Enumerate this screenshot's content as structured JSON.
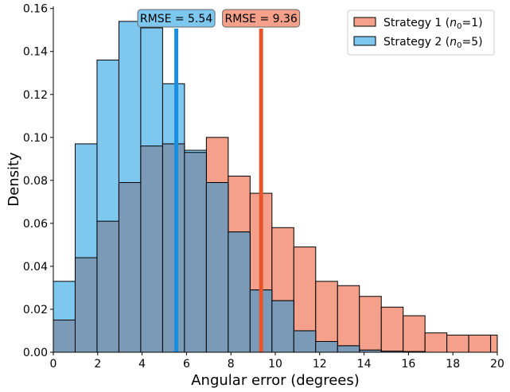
{
  "chart_data": {
    "type": "bar",
    "xlabel": "Angular error (degrees)",
    "ylabel": "Density",
    "xlim": [
      0,
      20
    ],
    "ylim": [
      0,
      0.161
    ],
    "xticks": [
      0,
      2,
      4,
      6,
      8,
      10,
      12,
      14,
      16,
      18,
      20
    ],
    "xtick_labels": [
      "0",
      "2",
      "4",
      "6",
      "8",
      "10",
      "12",
      "14",
      "16",
      "18",
      "20"
    ],
    "yticks": [
      0,
      0.02,
      0.04,
      0.06,
      0.08,
      0.1,
      0.12,
      0.14,
      0.16
    ],
    "ytick_labels": [
      "0.00",
      "0.02",
      "0.04",
      "0.06",
      "0.08",
      "0.10",
      "0.12",
      "0.14",
      "0.16"
    ],
    "bin_width": 0.985,
    "bin_edges": [
      0,
      0.985,
      1.97,
      2.955,
      3.94,
      4.925,
      5.91,
      6.895,
      7.88,
      8.865,
      9.85,
      10.835,
      11.82,
      12.805,
      13.79,
      14.775,
      15.76,
      16.745,
      17.73,
      18.715,
      19.7,
      20.685
    ],
    "grid": false,
    "legend_position": "top-right",
    "series": [
      {
        "name": "Strategy 1 (n₀=1)",
        "label_main": "Strategy 1 (",
        "label_sym": "n",
        "label_sub": "0",
        "label_tail": "=1)",
        "color": "#f4a08a",
        "values": [
          0.015,
          0.044,
          0.061,
          0.079,
          0.096,
          0.097,
          0.093,
          0.1,
          0.082,
          0.074,
          0.058,
          0.049,
          0.033,
          0.031,
          0.026,
          0.021,
          0.017,
          0.009,
          0.008,
          0.008,
          0.008
        ]
      },
      {
        "name": "Strategy 2 (n₀=5)",
        "label_main": "Strategy 2 (",
        "label_sym": "n",
        "label_sub": "0",
        "label_tail": "=5)",
        "color": "#7ec8f0",
        "values": [
          0.033,
          0.097,
          0.136,
          0.154,
          0.151,
          0.125,
          0.094,
          0.079,
          0.056,
          0.029,
          0.024,
          0.01,
          0.005,
          0.003,
          0.001,
          0.0005,
          0.0003,
          0,
          0,
          0,
          0
        ]
      }
    ],
    "overlap_color": "#7a9ab8",
    "reference_lines": [
      {
        "x": 5.54,
        "label": "RMSE = 5.54",
        "color": "#1a8fe0",
        "box_color": "#7ec8f0"
      },
      {
        "x": 9.36,
        "label": "RMSE = 9.36",
        "color": "#e8542a",
        "box_color": "#f4a08a"
      }
    ]
  }
}
